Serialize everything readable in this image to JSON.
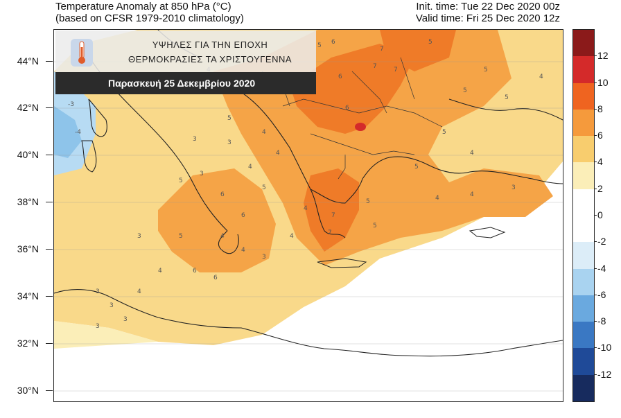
{
  "header": {
    "title_line1": "Temperature Anomaly at 850 hPa (°C)",
    "title_line2": "(based on CFSR 1979-2010 climatology)",
    "init_time": "Init. time: Tue 22 Dec 2020 00z",
    "valid_time": "Valid time: Fri 25 Dec 2020 12z"
  },
  "banner": {
    "line1": "ΥΨΗΛΕΣ ΓΙΑ ΤΗΝ ΕΠΟΧΗ",
    "line2": "ΘΕΡΜΟΚΡΑΣΙΕΣ ΤΑ ΧΡΙΣΤΟΥΓΕΝΝΑ",
    "date": "Παρασκευή 25 Δεκεμβρίου 2020",
    "icon": "thermometer-icon"
  },
  "latitude_labels": [
    "44°N",
    "42°N",
    "40°N",
    "38°N",
    "36°N",
    "34°N",
    "32°N",
    "30°N"
  ],
  "colorbar": {
    "labels": [
      "12",
      "10",
      "8",
      "6",
      "4",
      "2",
      "0",
      "-2",
      "-4",
      "-6",
      "-8",
      "-10",
      "-12"
    ],
    "colors": [
      "#8b1a1a",
      "#d42a2a",
      "#ef6420",
      "#f59a3c",
      "#f8cd6e",
      "#fbeeb8",
      "#ffffff",
      "#ffffff",
      "#dcedf8",
      "#a9d3f0",
      "#6aa9df",
      "#3a78c3",
      "#1f4a98",
      "#172b5e"
    ]
  },
  "map_contour_values": [
    "5",
    "6",
    "7",
    "7",
    "6",
    "5",
    "7",
    "6",
    "4",
    "4",
    "5",
    "3",
    "3",
    "-3",
    "-4",
    "4",
    "5",
    "6",
    "6",
    "7",
    "7",
    "5",
    "4",
    "4",
    "3",
    "4",
    "5",
    "6",
    "6",
    "4",
    "3",
    "5",
    "5",
    "4",
    "3",
    "3",
    "3",
    "4",
    "4",
    "3",
    "3",
    "5",
    "5",
    "5",
    "4",
    "3",
    "4",
    "4",
    "5",
    "5",
    "4",
    "4"
  ]
}
